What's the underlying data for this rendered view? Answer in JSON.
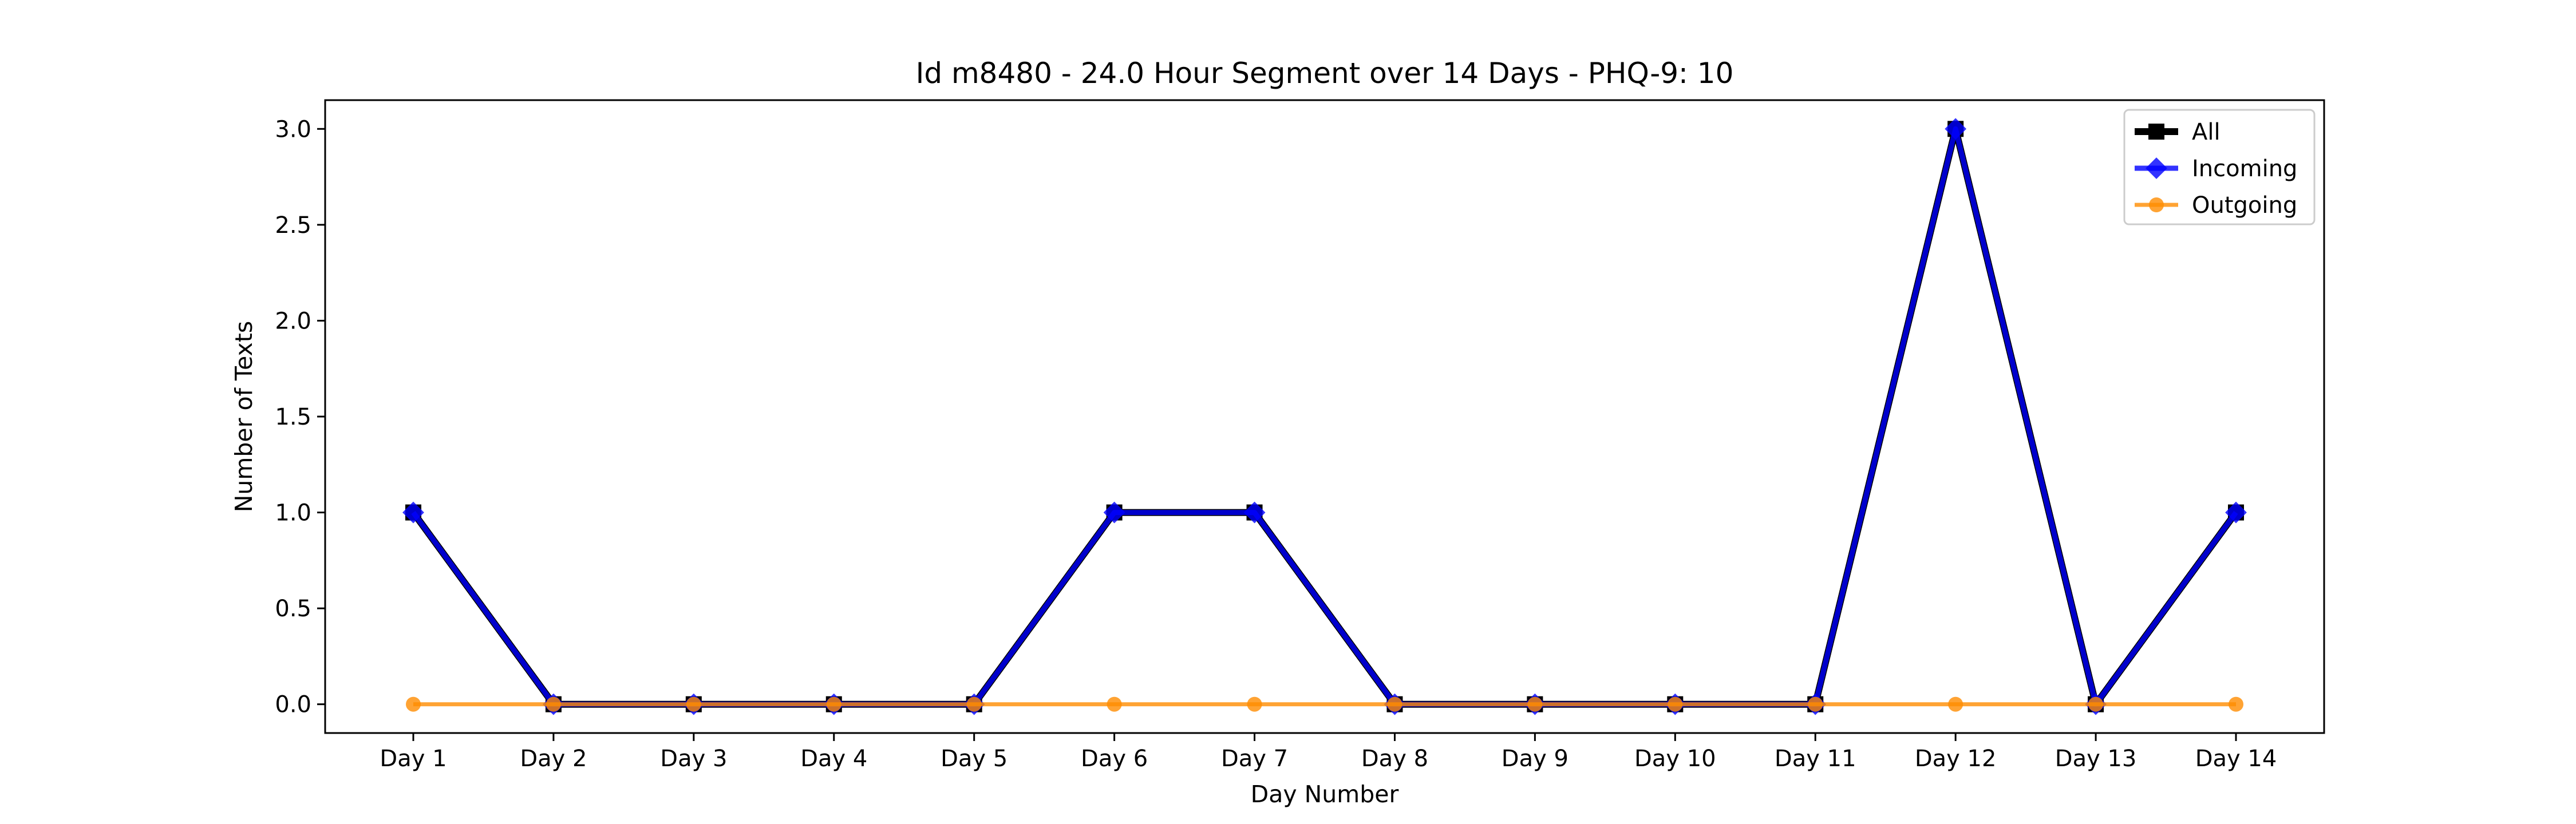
{
  "chart_data": {
    "type": "line",
    "title": "Id m8480 - 24.0 Hour Segment over 14 Days - PHQ-9: 10",
    "xlabel": "Day Number",
    "ylabel": "Number of Texts",
    "categories": [
      "Day 1",
      "Day 2",
      "Day 3",
      "Day 4",
      "Day 5",
      "Day 6",
      "Day 7",
      "Day 8",
      "Day 9",
      "Day 10",
      "Day 11",
      "Day 12",
      "Day 13",
      "Day 14"
    ],
    "ylim": [
      -0.15,
      3.15
    ],
    "yticks": [
      0.0,
      0.5,
      1.0,
      1.5,
      2.0,
      2.5,
      3.0
    ],
    "ytick_labels": [
      "0.0",
      "0.5",
      "1.0",
      "1.5",
      "2.0",
      "2.5",
      "3.0"
    ],
    "grid": false,
    "legend_position": "top-right",
    "series": [
      {
        "name": "All",
        "color": "#000000",
        "marker": "square",
        "values": [
          1,
          0,
          0,
          0,
          0,
          1,
          1,
          0,
          0,
          0,
          0,
          3,
          0,
          1
        ]
      },
      {
        "name": "Incoming",
        "color": "#0000ff",
        "marker": "diamond",
        "values": [
          1,
          0,
          0,
          0,
          0,
          1,
          1,
          0,
          0,
          0,
          0,
          3,
          0,
          1
        ]
      },
      {
        "name": "Outgoing",
        "color": "#ff8c00",
        "marker": "circle",
        "values": [
          0,
          0,
          0,
          0,
          0,
          0,
          0,
          0,
          0,
          0,
          0,
          0,
          0,
          0
        ]
      }
    ]
  }
}
